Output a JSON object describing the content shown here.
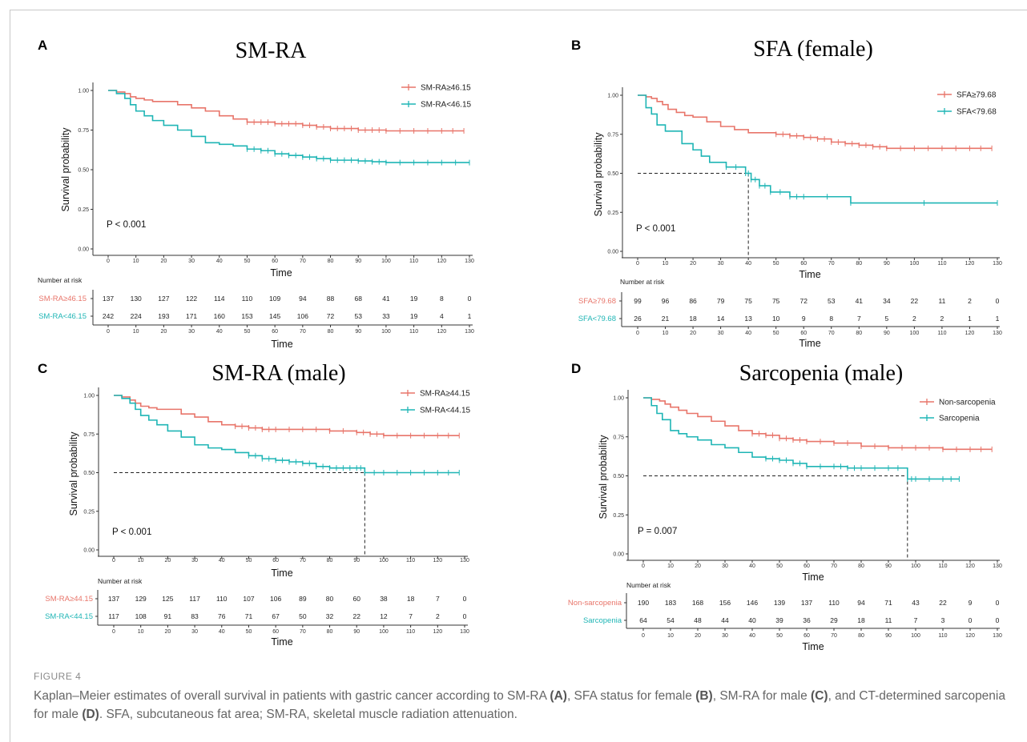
{
  "colors": {
    "high": "#e8756a",
    "low": "#1fb5b5",
    "axis": "#333333",
    "ref": "#222222"
  },
  "caption": {
    "figure_label": "FIGURE 4",
    "segments": [
      {
        "text": "Kaplan–Meier estimates of overall survival in patients with gastric cancer according to SM-RA ",
        "bold": false
      },
      {
        "text": "(A)",
        "bold": true
      },
      {
        "text": ", SFA status for female ",
        "bold": false
      },
      {
        "text": "(B)",
        "bold": true
      },
      {
        "text": ", SM-RA for male ",
        "bold": false
      },
      {
        "text": "(C)",
        "bold": true
      },
      {
        "text": ", and CT-determined sarcopenia for male ",
        "bold": false
      },
      {
        "text": "(D)",
        "bold": true
      },
      {
        "text": ". SFA, subcutaneous fat area; SM-RA, skeletal muscle radiation attenuation.",
        "bold": false
      }
    ]
  },
  "chart_data": [
    {
      "type": "line",
      "panel": "A",
      "title": "SM-RA",
      "xlabel": "Time",
      "ylabel": "Survival probability",
      "xlim": [
        0,
        130
      ],
      "ylim": [
        0,
        1
      ],
      "x_ticks": [
        "0",
        "10",
        "20",
        "30",
        "40",
        "50",
        "60",
        "70",
        "80",
        "90",
        "100",
        "110",
        "120",
        "130"
      ],
      "y_ticks": [
        "0.00",
        "0.25",
        "0.50",
        "0.75",
        "1.00"
      ],
      "p_value": "P < 0.001",
      "legend_position": "top-right",
      "median_line": null,
      "series": [
        {
          "name": "SM-RA≥46.15",
          "color_key": "high",
          "x": [
            0,
            3,
            6,
            8,
            10,
            13,
            16,
            20,
            25,
            30,
            35,
            40,
            45,
            50,
            55,
            60,
            65,
            70,
            75,
            80,
            85,
            90,
            95,
            100,
            110,
            120,
            128
          ],
          "y": [
            1.0,
            0.99,
            0.98,
            0.96,
            0.95,
            0.94,
            0.93,
            0.93,
            0.91,
            0.89,
            0.87,
            0.84,
            0.82,
            0.8,
            0.8,
            0.79,
            0.79,
            0.78,
            0.77,
            0.76,
            0.76,
            0.75,
            0.75,
            0.745,
            0.745,
            0.745,
            0.745
          ]
        },
        {
          "name": "SM-RA<46.15",
          "color_key": "low",
          "x": [
            0,
            3,
            6,
            8,
            10,
            13,
            16,
            20,
            25,
            30,
            35,
            40,
            45,
            50,
            55,
            60,
            65,
            70,
            75,
            80,
            85,
            90,
            95,
            100,
            110,
            120,
            130
          ],
          "y": [
            1.0,
            0.98,
            0.95,
            0.91,
            0.87,
            0.84,
            0.81,
            0.78,
            0.75,
            0.71,
            0.67,
            0.66,
            0.65,
            0.63,
            0.62,
            0.6,
            0.59,
            0.58,
            0.57,
            0.56,
            0.56,
            0.555,
            0.55,
            0.545,
            0.545,
            0.545,
            0.545
          ]
        }
      ],
      "risk_table": {
        "title": "Number at risk",
        "xlabel": "Time",
        "rows": [
          {
            "label": "SM-RA≥46.15",
            "color_key": "high",
            "values": [
              "137",
              "130",
              "127",
              "122",
              "114",
              "110",
              "109",
              "94",
              "88",
              "68",
              "41",
              "19",
              "8",
              "0"
            ]
          },
          {
            "label": "SM-RA<46.15",
            "color_key": "low",
            "values": [
              "242",
              "224",
              "193",
              "171",
              "160",
              "153",
              "145",
              "106",
              "72",
              "53",
              "33",
              "19",
              "4",
              "1"
            ]
          }
        ]
      }
    },
    {
      "type": "line",
      "panel": "B",
      "title": "SFA (female)",
      "xlabel": "Time",
      "ylabel": "Survival probability",
      "xlim": [
        0,
        130
      ],
      "ylim": [
        0,
        1
      ],
      "x_ticks": [
        "0",
        "10",
        "20",
        "30",
        "40",
        "50",
        "60",
        "70",
        "80",
        "90",
        "100",
        "110",
        "120",
        "130"
      ],
      "y_ticks": [
        "0.00",
        "0.25",
        "0.50",
        "0.75",
        "1.00"
      ],
      "p_value": "P < 0.001",
      "legend_position": "top-right",
      "median_line": {
        "x": 40,
        "y": 0.5
      },
      "series": [
        {
          "name": "SFA≥79.68",
          "color_key": "high",
          "x": [
            0,
            3,
            5,
            7,
            9,
            11,
            14,
            17,
            20,
            25,
            30,
            35,
            40,
            50,
            55,
            60,
            65,
            70,
            75,
            80,
            85,
            90,
            100,
            110,
            120,
            128
          ],
          "y": [
            1.0,
            0.99,
            0.98,
            0.96,
            0.94,
            0.91,
            0.89,
            0.87,
            0.86,
            0.83,
            0.8,
            0.78,
            0.76,
            0.75,
            0.74,
            0.73,
            0.72,
            0.7,
            0.69,
            0.68,
            0.67,
            0.66,
            0.66,
            0.66,
            0.66,
            0.66
          ]
        },
        {
          "name": "SFA<79.68",
          "color_key": "low",
          "x": [
            0,
            3,
            5,
            7,
            10,
            16,
            20,
            23,
            26,
            32,
            39,
            41,
            44,
            48,
            55,
            60,
            77,
            130
          ],
          "y": [
            1.0,
            0.92,
            0.88,
            0.81,
            0.77,
            0.69,
            0.65,
            0.61,
            0.57,
            0.54,
            0.5,
            0.46,
            0.42,
            0.38,
            0.35,
            0.35,
            0.31,
            0.31
          ]
        }
      ],
      "risk_table": {
        "title": "Number at risk",
        "xlabel": "Time",
        "rows": [
          {
            "label": "SFA≥79.68",
            "color_key": "high",
            "values": [
              "99",
              "96",
              "86",
              "79",
              "75",
              "75",
              "72",
              "53",
              "41",
              "34",
              "22",
              "11",
              "2",
              "0"
            ]
          },
          {
            "label": "SFA<79.68",
            "color_key": "low",
            "values": [
              "26",
              "21",
              "18",
              "14",
              "13",
              "10",
              "9",
              "8",
              "7",
              "5",
              "2",
              "2",
              "1",
              "1"
            ]
          }
        ]
      }
    },
    {
      "type": "line",
      "panel": "C",
      "title": "SM-RA (male)",
      "xlabel": "Time",
      "ylabel": "Survival probability",
      "xlim": [
        0,
        130
      ],
      "ylim": [
        0,
        1
      ],
      "x_ticks": [
        "0",
        "10",
        "20",
        "30",
        "40",
        "50",
        "60",
        "70",
        "80",
        "90",
        "100",
        "110",
        "120",
        "130"
      ],
      "y_ticks": [
        "0.00",
        "0.25",
        "0.50",
        "0.75",
        "1.00"
      ],
      "p_value": "P < 0.001",
      "legend_position": "top-right",
      "median_line": {
        "x": 93,
        "y": 0.5
      },
      "series": [
        {
          "name": "SM-RA≥44.15",
          "color_key": "high",
          "x": [
            0,
            3,
            6,
            8,
            10,
            13,
            16,
            20,
            25,
            30,
            35,
            40,
            45,
            50,
            55,
            60,
            70,
            80,
            90,
            95,
            100,
            110,
            120,
            128
          ],
          "y": [
            1.0,
            0.99,
            0.97,
            0.95,
            0.93,
            0.92,
            0.91,
            0.91,
            0.88,
            0.86,
            0.83,
            0.81,
            0.8,
            0.79,
            0.78,
            0.78,
            0.78,
            0.77,
            0.76,
            0.75,
            0.74,
            0.74,
            0.74,
            0.74
          ]
        },
        {
          "name": "SM-RA<44.15",
          "color_key": "low",
          "x": [
            0,
            3,
            6,
            8,
            10,
            13,
            16,
            20,
            25,
            30,
            35,
            40,
            45,
            50,
            55,
            60,
            65,
            70,
            75,
            80,
            85,
            90,
            93,
            100,
            110,
            120,
            128
          ],
          "y": [
            1.0,
            0.98,
            0.95,
            0.91,
            0.87,
            0.84,
            0.81,
            0.77,
            0.73,
            0.68,
            0.66,
            0.65,
            0.63,
            0.61,
            0.59,
            0.58,
            0.57,
            0.56,
            0.54,
            0.53,
            0.53,
            0.53,
            0.5,
            0.5,
            0.5,
            0.5,
            0.5
          ]
        }
      ],
      "risk_table": {
        "title": "Number at risk",
        "xlabel": "Time",
        "rows": [
          {
            "label": "SM-RA≥44.15",
            "color_key": "high",
            "values": [
              "137",
              "129",
              "125",
              "117",
              "110",
              "107",
              "106",
              "89",
              "80",
              "60",
              "38",
              "18",
              "7",
              "0"
            ]
          },
          {
            "label": "SM-RA<44.15",
            "color_key": "low",
            "values": [
              "117",
              "108",
              "91",
              "83",
              "76",
              "71",
              "67",
              "50",
              "32",
              "22",
              "12",
              "7",
              "2",
              "0"
            ]
          }
        ]
      }
    },
    {
      "type": "line",
      "panel": "D",
      "title": "Sarcopenia (male)",
      "xlabel": "Time",
      "ylabel": "Survival probability",
      "xlim": [
        0,
        130
      ],
      "ylim": [
        0,
        1
      ],
      "x_ticks": [
        "0",
        "10",
        "20",
        "30",
        "40",
        "50",
        "60",
        "70",
        "80",
        "90",
        "100",
        "110",
        "120",
        "130"
      ],
      "y_ticks": [
        "0.00",
        "0.25",
        "0.50",
        "0.75",
        "1.00"
      ],
      "p_value": "P = 0.007",
      "legend_position": "top-right",
      "median_line": {
        "x": 97,
        "y": 0.5
      },
      "series": [
        {
          "name": "Non-sarcopenia",
          "color_key": "high",
          "x": [
            0,
            3,
            6,
            8,
            10,
            13,
            16,
            20,
            25,
            30,
            35,
            40,
            45,
            50,
            55,
            60,
            70,
            80,
            90,
            100,
            110,
            120,
            128
          ],
          "y": [
            1.0,
            0.99,
            0.98,
            0.96,
            0.94,
            0.92,
            0.9,
            0.88,
            0.85,
            0.82,
            0.79,
            0.77,
            0.76,
            0.74,
            0.73,
            0.72,
            0.71,
            0.69,
            0.68,
            0.68,
            0.67,
            0.67,
            0.67
          ]
        },
        {
          "name": "Sarcopenia",
          "color_key": "low",
          "x": [
            0,
            3,
            5,
            7,
            10,
            13,
            16,
            20,
            25,
            30,
            35,
            40,
            45,
            50,
            55,
            60,
            70,
            75,
            80,
            90,
            97,
            100,
            110,
            116
          ],
          "y": [
            1.0,
            0.95,
            0.9,
            0.86,
            0.79,
            0.77,
            0.75,
            0.73,
            0.7,
            0.68,
            0.65,
            0.62,
            0.61,
            0.6,
            0.58,
            0.56,
            0.56,
            0.55,
            0.55,
            0.55,
            0.48,
            0.48,
            0.48,
            0.48
          ]
        }
      ],
      "risk_table": {
        "title": "Number at risk",
        "xlabel": "Time",
        "rows": [
          {
            "label": "Non-sarcopenia",
            "color_key": "high",
            "values": [
              "190",
              "183",
              "168",
              "156",
              "146",
              "139",
              "137",
              "110",
              "94",
              "71",
              "43",
              "22",
              "9",
              "0"
            ]
          },
          {
            "label": "Sarcopenia",
            "color_key": "low",
            "values": [
              "64",
              "54",
              "48",
              "44",
              "40",
              "39",
              "36",
              "29",
              "18",
              "11",
              "7",
              "3",
              "0",
              "0"
            ]
          }
        ]
      }
    }
  ]
}
